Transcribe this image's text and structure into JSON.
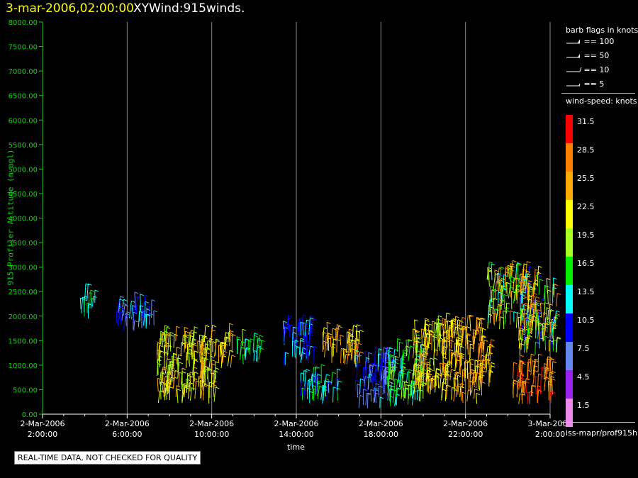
{
  "title": {
    "time": "3-mar-2006,02:00:00",
    "name": "XYWind:915winds."
  },
  "notice": "REAL-TIME DATA, NOT CHECKED FOR QUALITY",
  "source": "iss-mapr/prof915h",
  "legend": {
    "flags_title": "barb flags in knots",
    "flags": [
      "== 100",
      "== 50",
      "== 10",
      "== 5"
    ],
    "speed_title": "wind-speed: knots",
    "scale": [
      {
        "label": "31.5",
        "color": "#ff0000"
      },
      {
        "label": "28.5",
        "color": "#ff7f00"
      },
      {
        "label": "25.5",
        "color": "#ffaa00"
      },
      {
        "label": "22.5",
        "color": "#ffff00"
      },
      {
        "label": "19.5",
        "color": "#aaff22"
      },
      {
        "label": "16.5",
        "color": "#00ee00"
      },
      {
        "label": "13.5",
        "color": "#00ffff"
      },
      {
        "label": "10.5",
        "color": "#0000ff"
      },
      {
        "label": "7.5",
        "color": "#6688ee"
      },
      {
        "label": "4.5",
        "color": "#9922ee"
      },
      {
        "label": "1.5",
        "color": "#ee88ee"
      }
    ]
  },
  "chart_data": {
    "type": "scatter",
    "ylabel": "915 Profiler Altitude (m agl)",
    "xlabel": "time",
    "ylim": [
      0,
      8000
    ],
    "yticks": [
      "0.00",
      "500.00",
      "1000.00",
      "1500.00",
      "2000.00",
      "2500.00",
      "3000.00",
      "3500.00",
      "4000.00",
      "4500.00",
      "5000.00",
      "5500.00",
      "6000.00",
      "6500.00",
      "7000.00",
      "7500.00",
      "8000.00"
    ],
    "xlim_hours": [
      2,
      26
    ],
    "xticks": [
      {
        "hour": 2,
        "date": "2-Mar-2006",
        "time": "2:00:00"
      },
      {
        "hour": 6,
        "date": "2-Mar-2006",
        "time": "6:00:00"
      },
      {
        "hour": 10,
        "date": "2-Mar-2006",
        "time": "10:00:00"
      },
      {
        "hour": 14,
        "date": "2-Mar-2006",
        "time": "14:00:00"
      },
      {
        "hour": 18,
        "date": "2-Mar-2006",
        "time": "18:00:00"
      },
      {
        "hour": 22,
        "date": "2-Mar-2006",
        "time": "22:00:00"
      },
      {
        "hour": 26,
        "date": "3-Mar-2006",
        "time": "2:00:00"
      }
    ],
    "grid": "vertical",
    "clusters": [
      {
        "h0": 3.8,
        "h1": 4.5,
        "a0": 1950,
        "a1": 2350,
        "speed": [
          12,
          16
        ]
      },
      {
        "h0": 5.5,
        "h1": 7.5,
        "a0": 1700,
        "a1": 2150,
        "speed": [
          8,
          14
        ]
      },
      {
        "h0": 7.4,
        "h1": 10.2,
        "a0": 200,
        "a1": 1500,
        "speed": [
          18,
          27
        ]
      },
      {
        "h0": 10.3,
        "h1": 11.0,
        "a0": 900,
        "a1": 1500,
        "speed": [
          20,
          27
        ]
      },
      {
        "h0": 11.2,
        "h1": 12.4,
        "a0": 1000,
        "a1": 1400,
        "speed": [
          14,
          19
        ]
      },
      {
        "h0": 13.3,
        "h1": 14.8,
        "a0": 1000,
        "a1": 1750,
        "speed": [
          9,
          15
        ]
      },
      {
        "h0": 14.2,
        "h1": 16.0,
        "a0": 200,
        "a1": 700,
        "speed": [
          11,
          17
        ]
      },
      {
        "h0": 15.2,
        "h1": 17.0,
        "a0": 1000,
        "a1": 1550,
        "speed": [
          22,
          28
        ]
      },
      {
        "h0": 16.8,
        "h1": 18.5,
        "a0": 100,
        "a1": 1100,
        "speed": [
          6,
          13
        ]
      },
      {
        "h0": 18.3,
        "h1": 20.0,
        "a0": 150,
        "a1": 1300,
        "speed": [
          13,
          20
        ]
      },
      {
        "h0": 19.5,
        "h1": 21.0,
        "a0": 400,
        "a1": 1700,
        "speed": [
          20,
          27
        ]
      },
      {
        "h0": 20.8,
        "h1": 22.8,
        "a0": 200,
        "a1": 1750,
        "speed": [
          21,
          28
        ]
      },
      {
        "h0": 22.6,
        "h1": 23.2,
        "a0": 500,
        "a1": 1300,
        "speed": [
          22,
          28
        ]
      },
      {
        "h0": 23.0,
        "h1": 25.5,
        "a0": 1700,
        "a1": 2800,
        "speed": [
          11,
          29
        ]
      },
      {
        "h0": 24.5,
        "h1": 26.3,
        "a0": 1200,
        "a1": 2500,
        "speed": [
          9,
          30
        ]
      },
      {
        "h0": 24.2,
        "h1": 26.2,
        "a0": 200,
        "a1": 900,
        "speed": [
          24,
          31
        ]
      }
    ]
  }
}
